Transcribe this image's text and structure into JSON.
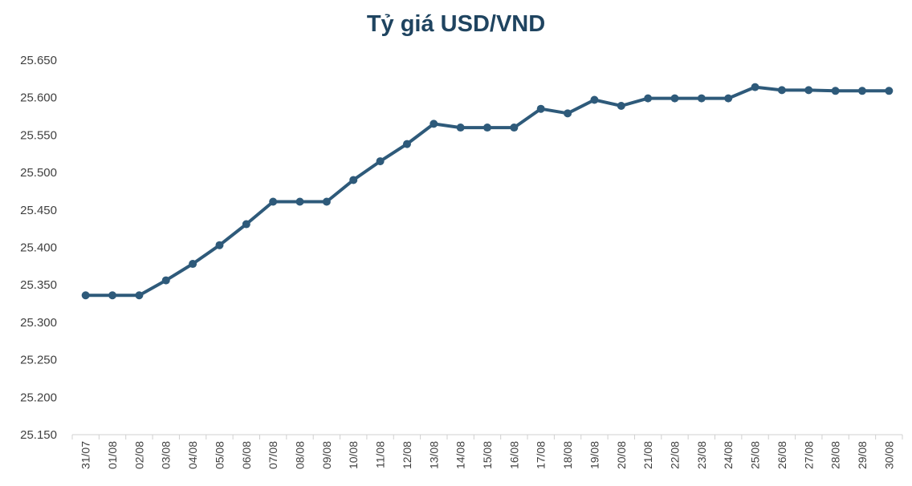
{
  "chart_data": {
    "type": "line",
    "title": "Tỷ giá USD/VND",
    "xlabel": "",
    "ylabel": "",
    "ylim": [
      25150,
      25650
    ],
    "yticks": [
      "25.150",
      "25.200",
      "25.250",
      "25.300",
      "25.350",
      "25.400",
      "25.450",
      "25.500",
      "25.550",
      "25.600",
      "25.650"
    ],
    "grid": false,
    "legend": "none",
    "color": "#2e5a7a",
    "categories": [
      "31/07",
      "01/08",
      "02/08",
      "03/08",
      "04/08",
      "05/08",
      "06/08",
      "07/08",
      "08/08",
      "09/08",
      "10/08",
      "11/08",
      "12/08",
      "13/08",
      "14/08",
      "15/08",
      "16/08",
      "17/08",
      "18/08",
      "19/08",
      "20/08",
      "21/08",
      "22/08",
      "23/08",
      "24/08",
      "25/08",
      "26/08",
      "27/08",
      "28/08",
      "29/08",
      "30/08"
    ],
    "values": [
      25336,
      25336,
      25336,
      25356,
      25378,
      25403,
      25431,
      25461,
      25461,
      25461,
      25490,
      25515,
      25538,
      25565,
      25560,
      25560,
      25560,
      25585,
      25579,
      25597,
      25589,
      25599,
      25599,
      25599,
      25599,
      25614,
      25610,
      25610,
      25609,
      25609,
      25609
    ]
  }
}
